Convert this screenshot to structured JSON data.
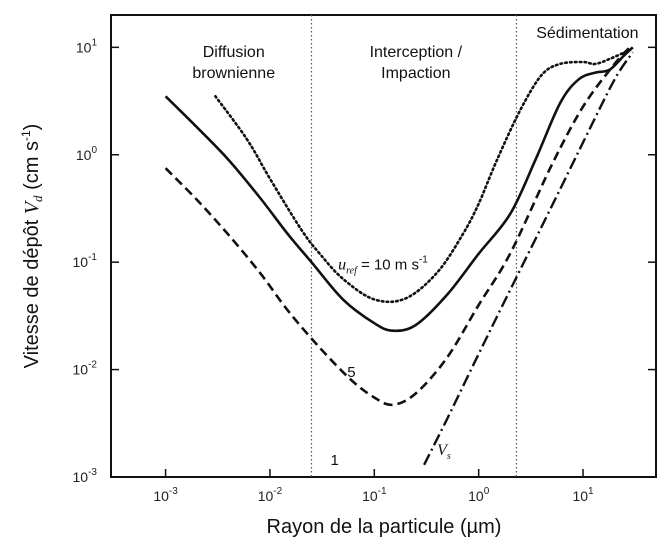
{
  "chart_data": {
    "type": "line",
    "xlabel": "Rayon de la particule (µm)",
    "ylabel_prefix": "Vitesse de dépôt ",
    "ylabel_symbol": "V",
    "ylabel_subscript": "d",
    "ylabel_unit_open": " (cm s",
    "ylabel_unit_exp": "-1",
    "ylabel_unit_close": ")",
    "xscale": "log",
    "yscale": "log",
    "xlim": [
      0.0003,
      50
    ],
    "ylim": [
      0.001,
      20
    ],
    "grid": false,
    "x_ticks": [
      {
        "value": 0.001,
        "base": "10",
        "exp": "-3"
      },
      {
        "value": 0.01,
        "base": "10",
        "exp": "-2"
      },
      {
        "value": 0.1,
        "base": "10",
        "exp": "-1"
      },
      {
        "value": 1,
        "base": "10",
        "exp": "0"
      },
      {
        "value": 10,
        "base": "10",
        "exp": "1"
      }
    ],
    "y_ticks": [
      {
        "value": 0.001,
        "base": "10",
        "exp": "-3"
      },
      {
        "value": 0.01,
        "base": "10",
        "exp": "-2"
      },
      {
        "value": 0.1,
        "base": "10",
        "exp": "-1"
      },
      {
        "value": 1,
        "base": "10",
        "exp": "0"
      },
      {
        "value": 10,
        "base": "10",
        "exp": "1"
      }
    ],
    "regions": [
      {
        "lines": [
          "Diffusion",
          "brownienne"
        ],
        "x": 0.0045
      },
      {
        "lines": [
          "Interception /",
          "Impaction"
        ],
        "x": 0.25
      },
      {
        "lines": [
          "Sédimentation"
        ],
        "x": 11
      }
    ],
    "region_boundaries": [
      0.025,
      2.3
    ],
    "series_labels": [
      {
        "kind": "uref",
        "symbol": "u",
        "sub": "ref",
        "text": " = 10 m s",
        "exp": "-1",
        "x": 0.045,
        "y": 0.085
      },
      {
        "kind": "plain",
        "text": "5",
        "x": 0.055,
        "y": 0.0085
      },
      {
        "kind": "plain",
        "text": "1",
        "x": 0.038,
        "y": 0.0013
      },
      {
        "kind": "vs",
        "symbol": "V",
        "sub": "s",
        "x": 0.4,
        "y": 0.0016
      }
    ],
    "series": [
      {
        "name": "10",
        "style": "dotted",
        "points": [
          [
            0.003,
            3.5
          ],
          [
            0.006,
            1.4
          ],
          [
            0.01,
            0.6
          ],
          [
            0.02,
            0.2
          ],
          [
            0.03,
            0.12
          ],
          [
            0.05,
            0.07
          ],
          [
            0.1,
            0.045
          ],
          [
            0.2,
            0.046
          ],
          [
            0.4,
            0.08
          ],
          [
            0.7,
            0.18
          ],
          [
            1.0,
            0.35
          ],
          [
            1.5,
            0.9
          ],
          [
            2.5,
            2.6
          ],
          [
            4,
            5.5
          ],
          [
            6,
            7.0
          ],
          [
            10,
            7.3
          ],
          [
            13,
            7.0
          ],
          [
            18,
            7.8
          ],
          [
            25,
            9.0
          ]
        ]
      },
      {
        "name": "5",
        "style": "solid",
        "points": [
          [
            0.001,
            3.5
          ],
          [
            0.002,
            1.8
          ],
          [
            0.004,
            0.9
          ],
          [
            0.008,
            0.4
          ],
          [
            0.015,
            0.18
          ],
          [
            0.025,
            0.1
          ],
          [
            0.05,
            0.045
          ],
          [
            0.1,
            0.027
          ],
          [
            0.15,
            0.023
          ],
          [
            0.25,
            0.026
          ],
          [
            0.5,
            0.05
          ],
          [
            1.0,
            0.12
          ],
          [
            2.0,
            0.28
          ],
          [
            3.5,
            0.9
          ],
          [
            6,
            3.0
          ],
          [
            9,
            5.0
          ],
          [
            13,
            5.8
          ],
          [
            18,
            6.2
          ],
          [
            25,
            8.5
          ],
          [
            30,
            10
          ]
        ]
      },
      {
        "name": "1",
        "style": "dashed",
        "points": [
          [
            0.001,
            0.75
          ],
          [
            0.002,
            0.38
          ],
          [
            0.004,
            0.18
          ],
          [
            0.008,
            0.08
          ],
          [
            0.015,
            0.035
          ],
          [
            0.03,
            0.016
          ],
          [
            0.06,
            0.008
          ],
          [
            0.1,
            0.0055
          ],
          [
            0.15,
            0.0047
          ],
          [
            0.25,
            0.006
          ],
          [
            0.5,
            0.013
          ],
          [
            1,
            0.04
          ],
          [
            2,
            0.12
          ],
          [
            5,
            0.8
          ],
          [
            10,
            2.8
          ],
          [
            20,
            7.0
          ],
          [
            28,
            10
          ]
        ]
      },
      {
        "name": "Vs",
        "style": "dashdot",
        "points": [
          [
            0.3,
            0.0013
          ],
          [
            0.5,
            0.0035
          ],
          [
            1,
            0.014
          ],
          [
            2,
            0.055
          ],
          [
            5,
            0.33
          ],
          [
            10,
            1.3
          ],
          [
            20,
            5.0
          ],
          [
            30,
            9.0
          ]
        ]
      }
    ]
  }
}
